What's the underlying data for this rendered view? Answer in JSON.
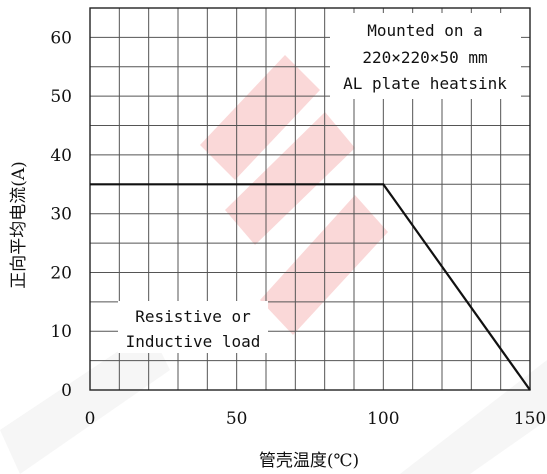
{
  "chart_data": {
    "type": "line",
    "xlabel": "管壳温度(℃)",
    "ylabel": "正向平均电流(A)",
    "xlim": [
      0,
      150
    ],
    "ylim": [
      0,
      65
    ],
    "x_ticks": [
      0,
      50,
      100,
      150
    ],
    "y_ticks": [
      0,
      10,
      20,
      30,
      40,
      50,
      60
    ],
    "grid": true,
    "series": [
      {
        "x": [
          0,
          100,
          150
        ],
        "y": [
          35,
          35,
          0
        ]
      }
    ],
    "annotations": {
      "heatsink": [
        "Mounted on a",
        "220×220×50 mm",
        "AL plate heatsink"
      ],
      "load": [
        "Resistive or",
        "Inductive load"
      ]
    },
    "watermark_color": "#f4a0a0",
    "line_color": "#111111"
  }
}
